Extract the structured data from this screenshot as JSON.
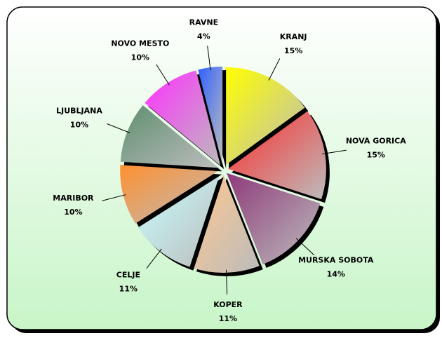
{
  "chart_data": {
    "type": "pie",
    "categories": [
      "KRANJ",
      "NOVA GORICA",
      "MURSKA SOBOTA",
      "KOPER",
      "CELJE",
      "MARIBOR",
      "LJUBLJANA",
      "NOVO MESTO",
      "RAVNE"
    ],
    "values": [
      15,
      15,
      14,
      11,
      11,
      10,
      10,
      10,
      4
    ],
    "value_labels": [
      "15%",
      "15%",
      "14%",
      "11%",
      "11%",
      "10%",
      "10%",
      "10%",
      "4%"
    ],
    "colors": [
      "#ffff00",
      "#ff2a2a",
      "#8e3a7a",
      "#ffc890",
      "#c8ffff",
      "#ff9030",
      "#5f8f70",
      "#ff30ff",
      "#3060ff"
    ]
  }
}
